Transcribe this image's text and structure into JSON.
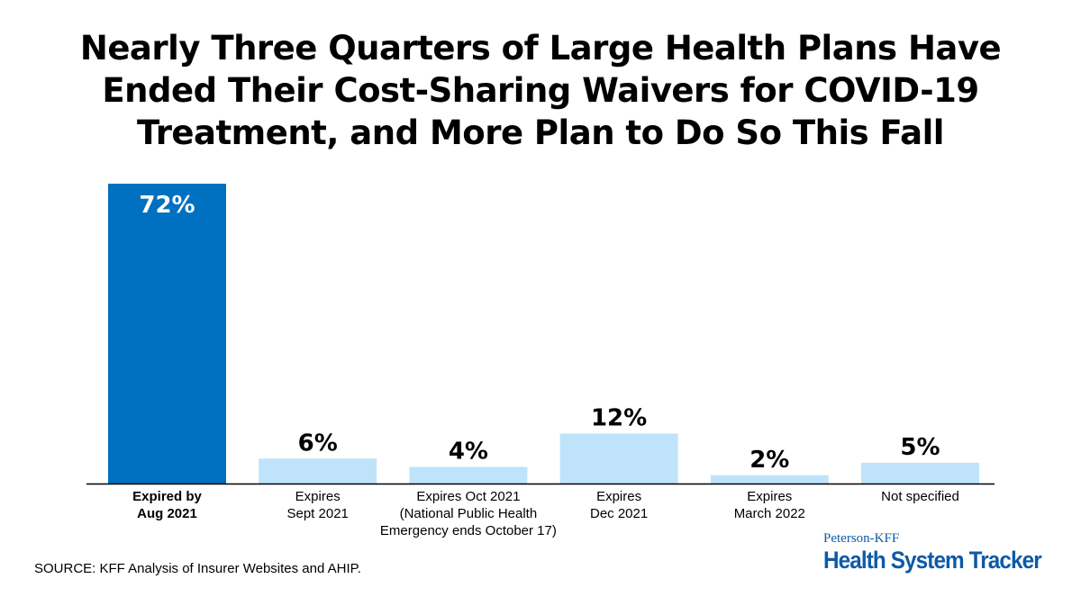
{
  "title_lines": [
    "Nearly Three Quarters of Large Health Plans Have",
    "Ended Their Cost-Sharing Waivers for COVID-19",
    "Treatment, and More Plan to Do So This Fall"
  ],
  "chart_data": {
    "type": "bar",
    "categories": [
      [
        "Expired by",
        "Aug 2021"
      ],
      [
        "Expires",
        "Sept 2021"
      ],
      [
        "Expires Oct 2021",
        "(National Public Health",
        "Emergency ends October 17)"
      ],
      [
        "Expires",
        "Dec 2021"
      ],
      [
        "Expires",
        "March 2022"
      ],
      [
        "Not specified"
      ]
    ],
    "values": [
      72,
      6,
      4,
      12,
      2,
      5
    ],
    "value_labels": [
      "72%",
      "6%",
      "4%",
      "12%",
      "2%",
      "5%"
    ],
    "bar_colors": [
      "#0070c0",
      "#bfe3fb",
      "#bfe3fb",
      "#bfe3fb",
      "#bfe3fb",
      "#bfe3fb"
    ],
    "highlight_index": 0,
    "ylim": [
      0,
      72
    ],
    "grid": false,
    "legend": "none"
  },
  "source": "SOURCE: KFF Analysis of Insurer Websites and AHIP.",
  "brand": {
    "small": "Peterson-KFF",
    "big": "Health System Tracker"
  },
  "colors": {
    "highlight": "#0070c0",
    "bar": "#bfe3fb",
    "brand": "#0d5aa7"
  }
}
